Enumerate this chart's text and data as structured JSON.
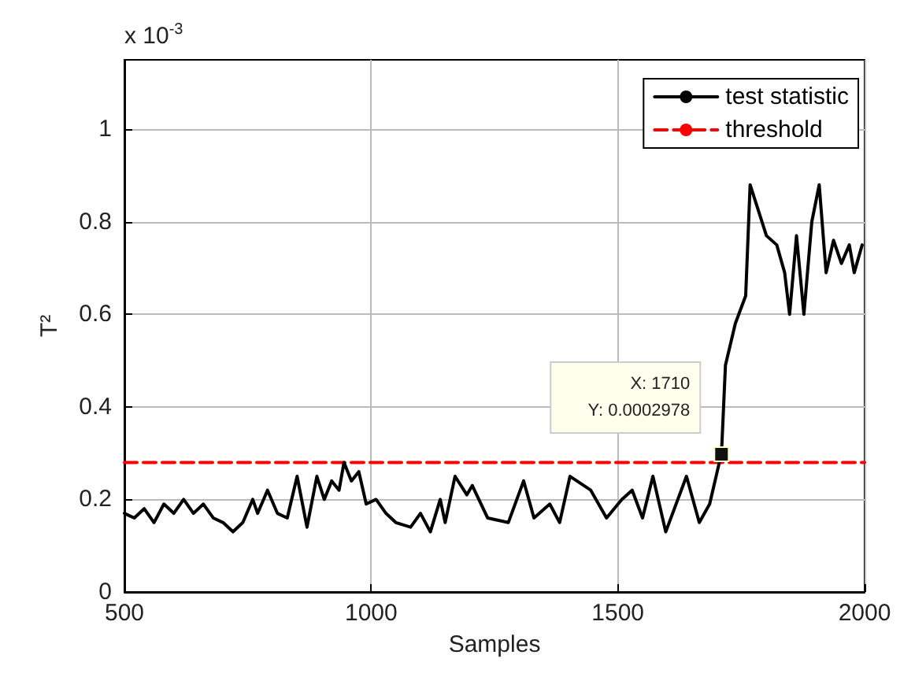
{
  "chart_data": {
    "type": "line",
    "xlabel": "Samples",
    "ylabel": "T²",
    "xlim": [
      500,
      2000
    ],
    "xticks": [
      500,
      1000,
      1500,
      2000
    ],
    "ylim": [
      0,
      1.15
    ],
    "yticks": [
      0,
      0.2,
      0.4,
      0.6,
      0.8,
      1
    ],
    "grid": true,
    "legend": "top right",
    "marker": "none",
    "series": [
      {
        "name": "test statistic",
        "color": "#000000",
        "line_style": "solid",
        "x": [
          500,
          520,
          540,
          560,
          580,
          600,
          620,
          640,
          660,
          680,
          700,
          720,
          740,
          760,
          770,
          790,
          810,
          830,
          850,
          870,
          890,
          905,
          920,
          935,
          945,
          960,
          975,
          990,
          1010,
          1030,
          1050,
          1080,
          1100,
          1120,
          1140,
          1150,
          1170,
          1194,
          1205,
          1236,
          1278,
          1309,
          1330,
          1362,
          1382,
          1403,
          1445,
          1477,
          1508,
          1529,
          1550,
          1571,
          1597,
          1639,
          1665,
          1686,
          1710,
          1718,
          1738,
          1759,
          1768,
          1780,
          1801,
          1822,
          1838,
          1848,
          1862,
          1877,
          1893,
          1908,
          1922,
          1937,
          1953,
          1969,
          1979,
          1995
        ],
        "values": [
          0.17,
          0.16,
          0.18,
          0.15,
          0.19,
          0.17,
          0.2,
          0.17,
          0.19,
          0.16,
          0.15,
          0.13,
          0.15,
          0.2,
          0.17,
          0.22,
          0.17,
          0.16,
          0.25,
          0.14,
          0.25,
          0.2,
          0.24,
          0.22,
          0.28,
          0.24,
          0.26,
          0.19,
          0.2,
          0.17,
          0.15,
          0.14,
          0.17,
          0.13,
          0.2,
          0.15,
          0.25,
          0.21,
          0.23,
          0.16,
          0.15,
          0.24,
          0.16,
          0.19,
          0.15,
          0.25,
          0.22,
          0.16,
          0.2,
          0.22,
          0.16,
          0.25,
          0.13,
          0.25,
          0.15,
          0.19,
          0.3,
          0.49,
          0.58,
          0.64,
          0.88,
          0.84,
          0.77,
          0.75,
          0.69,
          0.6,
          0.77,
          0.6,
          0.8,
          0.88,
          0.69,
          0.76,
          0.71,
          0.75,
          0.69,
          0.75
        ]
      },
      {
        "name": "threshold",
        "color": "#ff0000",
        "line_style": "dashed",
        "x": [
          500,
          2000
        ],
        "values": [
          0.28,
          0.28
        ]
      }
    ],
    "annotations": [
      "x 10$^{-3}$",
      {
        "text": "X: 1710\nY: 0.0002978",
        "x": 1710,
        "y": 0.2978
      }
    ]
  }
}
